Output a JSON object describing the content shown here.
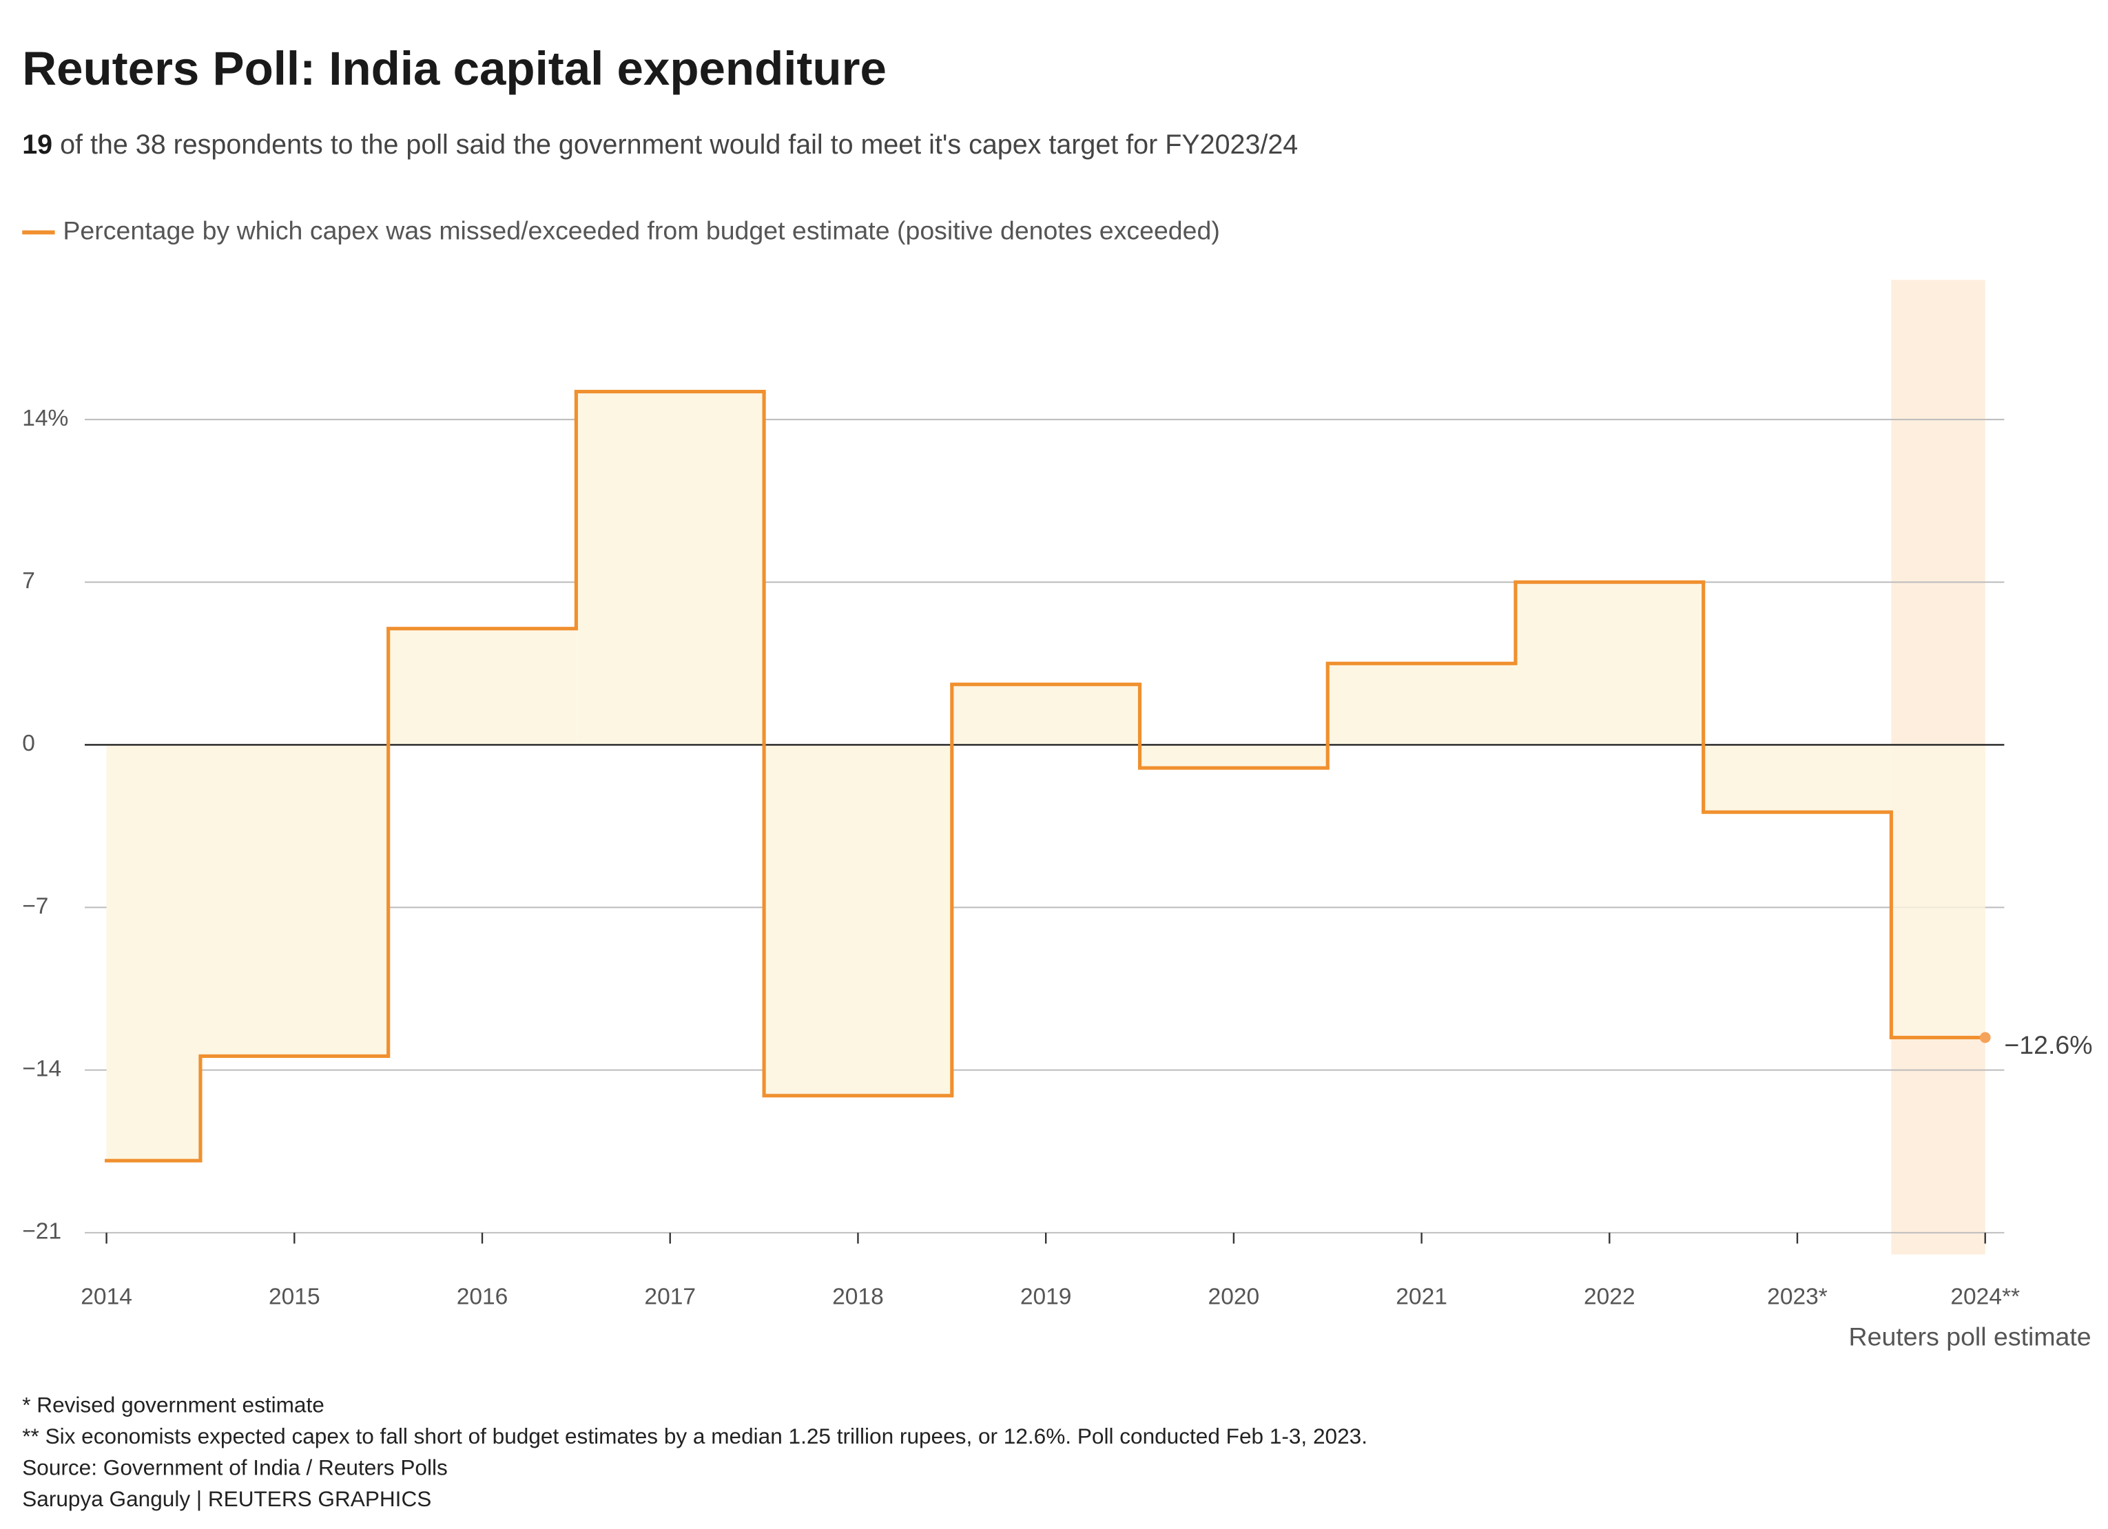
{
  "chart_data": {
    "type": "step",
    "title": "Reuters Poll: India capital expenditure",
    "subtitle_bold": "19",
    "subtitle": " of the 38 respondents to the poll said the government would fail to meet it's capex target for FY2023/24",
    "categories": [
      "2014",
      "2015",
      "2016",
      "2017",
      "2018",
      "2019",
      "2020",
      "2021",
      "2022",
      "2023*",
      "2024**"
    ],
    "series": [
      {
        "name": "Percentage by which capex was missed/exceeded from budget estimate (positive denotes exceeded)",
        "color": "#f0902f",
        "fill": "#fdf6e3",
        "values": [
          -17.9,
          -13.4,
          5.0,
          15.2,
          -15.1,
          2.6,
          -1.0,
          3.5,
          7.0,
          -2.9,
          -12.6
        ],
        "value_labels": [
          null,
          null,
          null,
          null,
          null,
          null,
          null,
          null,
          null,
          null,
          "−12.6%"
        ]
      }
    ],
    "ylim": [
      -22,
      20
    ],
    "yticks": [
      {
        "value": -21,
        "label": "−21"
      },
      {
        "value": -14,
        "label": "−14"
      },
      {
        "value": -7,
        "label": "−7"
      },
      0,
      7,
      {
        "value": 14,
        "label": "14%"
      }
    ],
    "grid": true,
    "highlight_label": "Reuters poll estimate",
    "highlight_color": "#fdeede",
    "footnotes": [
      "* Revised government estimate",
      "** Six economists expected capex to fall short of budget estimates by a median 1.25 trillion rupees, or 12.6%. Poll conducted Feb 1-3, 2023.",
      "Source: Government of India / Reuters Polls",
      "Sarupya Ganguly | REUTERS GRAPHICS"
    ]
  }
}
